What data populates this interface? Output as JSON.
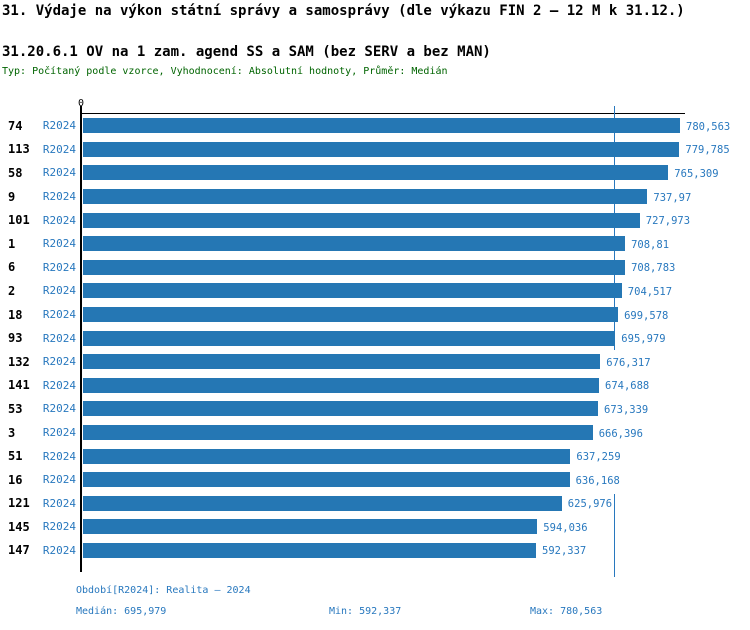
{
  "title": "31. Výdaje na výkon státní správy a samosprávy (dle výkazu FIN 2 – 12 M k 31.12.)",
  "subtitle": "31.20.6.1 OV na 1 zam. agend SS a SAM (bez SERV a bez MAN)",
  "meta": "Typ: Počítaný podle vzorce, Vyhodnocení: Absolutní hodnoty, Průměr: Medián",
  "colors": {
    "bar": "#2577B4",
    "blue_text": "#2878BE",
    "meta_text": "#006400",
    "axis": "#000000"
  },
  "axis": {
    "zero_label": "0"
  },
  "chart_data": {
    "type": "bar",
    "orientation": "horizontal",
    "title": "31.20.6.1 OV na 1 zam. agend SS a SAM (bez SERV a bez MAN)",
    "categories": [
      "74",
      "113",
      "58",
      "9",
      "101",
      "1",
      "6",
      "2",
      "18",
      "93",
      "132",
      "141",
      "53",
      "3",
      "51",
      "16",
      "121",
      "145",
      "147"
    ],
    "series_label": "R2024",
    "values": [
      780.563,
      779.785,
      765.309,
      737.97,
      727.973,
      708.81,
      708.783,
      704.517,
      699.578,
      695.979,
      676.317,
      674.688,
      673.339,
      666.396,
      637.259,
      636.168,
      625.976,
      594.036,
      592.337
    ],
    "value_labels": [
      "780,563",
      "779,785",
      "765,309",
      "737,97",
      "727,973",
      "708,81",
      "708,783",
      "704,517",
      "699,578",
      "695,979",
      "676,317",
      "674,688",
      "673,339",
      "666,396",
      "637,259",
      "636,168",
      "625,976",
      "594,036",
      "592,337"
    ],
    "median": 695.979,
    "min": 592.337,
    "max": 780.563,
    "xlim": [
      0,
      790
    ],
    "grid": false,
    "legend_position": "none",
    "annotations": [
      "median vertical line at 695,979"
    ]
  },
  "footer": {
    "period": "Období[R2024]: Realita – 2024",
    "median": "Medián: 695,979",
    "min": "Min: 592,337",
    "max": "Max: 780,563"
  }
}
